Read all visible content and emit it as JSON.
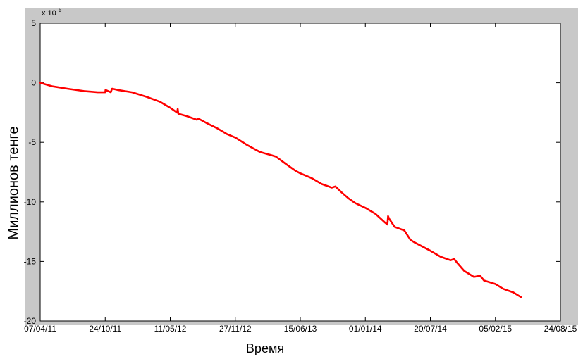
{
  "chart_data": {
    "type": "line",
    "title": "",
    "xlabel": "Время",
    "ylabel": "Миллионов тенге",
    "y_multiplier_label": "x 10",
    "y_multiplier_exponent": "5",
    "x_tick_labels": [
      "07/04/11",
      "24/10/11",
      "11/05/12",
      "27/11/12",
      "15/06/13",
      "01/01/14",
      "20/07/14",
      "05/02/15",
      "24/08/15"
    ],
    "x_ticks": [
      "2011-04-07",
      "2011-10-24",
      "2012-05-11",
      "2012-11-27",
      "2013-06-15",
      "2014-01-01",
      "2014-07-20",
      "2015-02-05",
      "2015-08-24"
    ],
    "xlim": [
      "2011-04-07",
      "2015-08-24"
    ],
    "y_ticks": [
      5,
      0,
      -5,
      -10,
      -15,
      -20
    ],
    "y_tick_labels": [
      "5",
      "0",
      "-5",
      "-10",
      "-15",
      "-20"
    ],
    "ylim": [
      -20,
      5
    ],
    "grid": false,
    "colors": {
      "series": "#ff0000",
      "figure_background": "#c8c8c8",
      "axes_background": "#ffffff",
      "axes": "#000000"
    },
    "series": [
      {
        "name": "",
        "x": [
          "2011-04-07",
          "2011-05-15",
          "2011-07-01",
          "2011-08-20",
          "2011-10-01",
          "2011-10-24",
          "2011-10-25",
          "2011-11-10",
          "2011-11-14",
          "2011-11-16",
          "2011-12-01",
          "2012-01-15",
          "2012-03-01",
          "2012-04-10",
          "2012-05-11",
          "2012-06-01",
          "2012-06-03",
          "2012-06-05",
          "2012-07-01",
          "2012-08-01",
          "2012-08-05",
          "2012-09-01",
          "2012-10-01",
          "2012-11-01",
          "2012-11-27",
          "2013-01-01",
          "2013-02-10",
          "2013-03-20",
          "2013-04-01",
          "2013-05-01",
          "2013-06-01",
          "2013-06-15",
          "2013-07-20",
          "2013-08-20",
          "2013-09-20",
          "2013-10-01",
          "2013-10-20",
          "2013-11-10",
          "2013-12-01",
          "2014-01-01",
          "2014-02-01",
          "2014-03-01",
          "2014-03-10",
          "2014-03-12",
          "2014-03-15",
          "2014-04-01",
          "2014-05-01",
          "2014-05-20",
          "2014-06-01",
          "2014-07-20",
          "2014-08-20",
          "2014-09-20",
          "2014-10-01",
          "2014-10-10",
          "2014-11-01",
          "2014-12-01",
          "2014-12-20",
          "2015-01-01",
          "2015-02-05",
          "2015-03-01",
          "2015-04-01",
          "2015-04-25"
        ],
        "y": [
          0,
          -0.3,
          -0.5,
          -0.7,
          -0.8,
          -0.8,
          -0.6,
          -0.8,
          -0.5,
          -0.5,
          -0.6,
          -0.8,
          -1.2,
          -1.6,
          -2.1,
          -2.5,
          -2.2,
          -2.6,
          -2.8,
          -3.1,
          -3.0,
          -3.4,
          -3.8,
          -4.3,
          -4.6,
          -5.2,
          -5.8,
          -6.1,
          -6.2,
          -6.8,
          -7.4,
          -7.6,
          -8.0,
          -8.5,
          -8.8,
          -8.7,
          -9.2,
          -9.7,
          -10.1,
          -10.5,
          -11.0,
          -11.7,
          -11.9,
          -11.2,
          -11.4,
          -12.1,
          -12.4,
          -13.2,
          -13.4,
          -14.1,
          -14.6,
          -14.9,
          -14.8,
          -15.1,
          -15.8,
          -16.3,
          -16.2,
          -16.6,
          -16.9,
          -17.3,
          -17.6,
          -18.0
        ]
      }
    ]
  }
}
